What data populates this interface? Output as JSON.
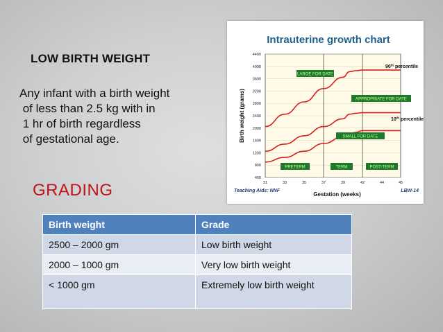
{
  "slide": {
    "title": "LOW BIRTH WEIGHT",
    "definition_lines": [
      "Any infant with a birth weight",
      " of less than 2.5 kg with in",
      " 1 hr of birth regardless",
      " of gestational age."
    ],
    "grading_heading": "GRADING"
  },
  "table": {
    "headers": [
      "Birth weight",
      "Grade"
    ],
    "rows": [
      [
        "2500 – 2000 gm",
        "Low birth weight"
      ],
      [
        "2000 – 1000 gm",
        "Very low birth weight"
      ],
      [
        "< 1000 gm",
        "Extremely low birth weight"
      ]
    ]
  },
  "chart_data": {
    "type": "line",
    "title": "Intrauterine growth chart",
    "xlabel": "Gestation (weeks)",
    "ylabel": "Birth weight (grams)",
    "x_ticks": [
      31,
      33,
      35,
      37,
      39,
      42,
      44,
      45
    ],
    "y_ticks": [
      400,
      800,
      1200,
      1600,
      2000,
      2400,
      2800,
      3200,
      3600,
      4000,
      4400
    ],
    "xlim": [
      31,
      45
    ],
    "ylim": [
      400,
      4400
    ],
    "series": [
      {
        "name": "90th percentile",
        "x": [
          31,
          33,
          35,
          37,
          39,
          40,
          41,
          42,
          45
        ],
        "values": [
          2050,
          2450,
          2850,
          3280,
          3650,
          3830,
          3860,
          3880,
          3880
        ]
      },
      {
        "name": "10th percentile",
        "x": [
          31,
          33,
          35,
          37,
          39,
          40,
          41,
          42,
          45
        ],
        "values": [
          1250,
          1480,
          1750,
          2050,
          2300,
          2450,
          2480,
          2500,
          2500
        ]
      },
      {
        "name": "",
        "x": [
          31,
          33,
          35,
          37,
          39,
          41,
          42,
          45
        ],
        "values": [
          900,
          1050,
          1250,
          1500,
          1720,
          1860,
          1920,
          1920
        ]
      }
    ],
    "region_labels": [
      "LARGE FOR DATE",
      "APPROPRIATE FOR DATE",
      "SMALL FOR DATE",
      "PRETERM",
      "TERM",
      "POST-TERM"
    ],
    "percentile_labels": [
      {
        "prefix": "90",
        "suffix": "th",
        "word": "percentile"
      },
      {
        "prefix": "10",
        "suffix": "th",
        "word": "percentile"
      }
    ],
    "term_boundaries_weeks": [
      37,
      42
    ],
    "footer_left": "Teaching Aids: NNF",
    "footer_right": "LBW-14",
    "colors": {
      "curve": "#d42020",
      "label_box": "#1e7a2a",
      "label_text": "#c8ff90",
      "title": "#1f5f8b",
      "plot_bg": "#fffbe8"
    }
  }
}
